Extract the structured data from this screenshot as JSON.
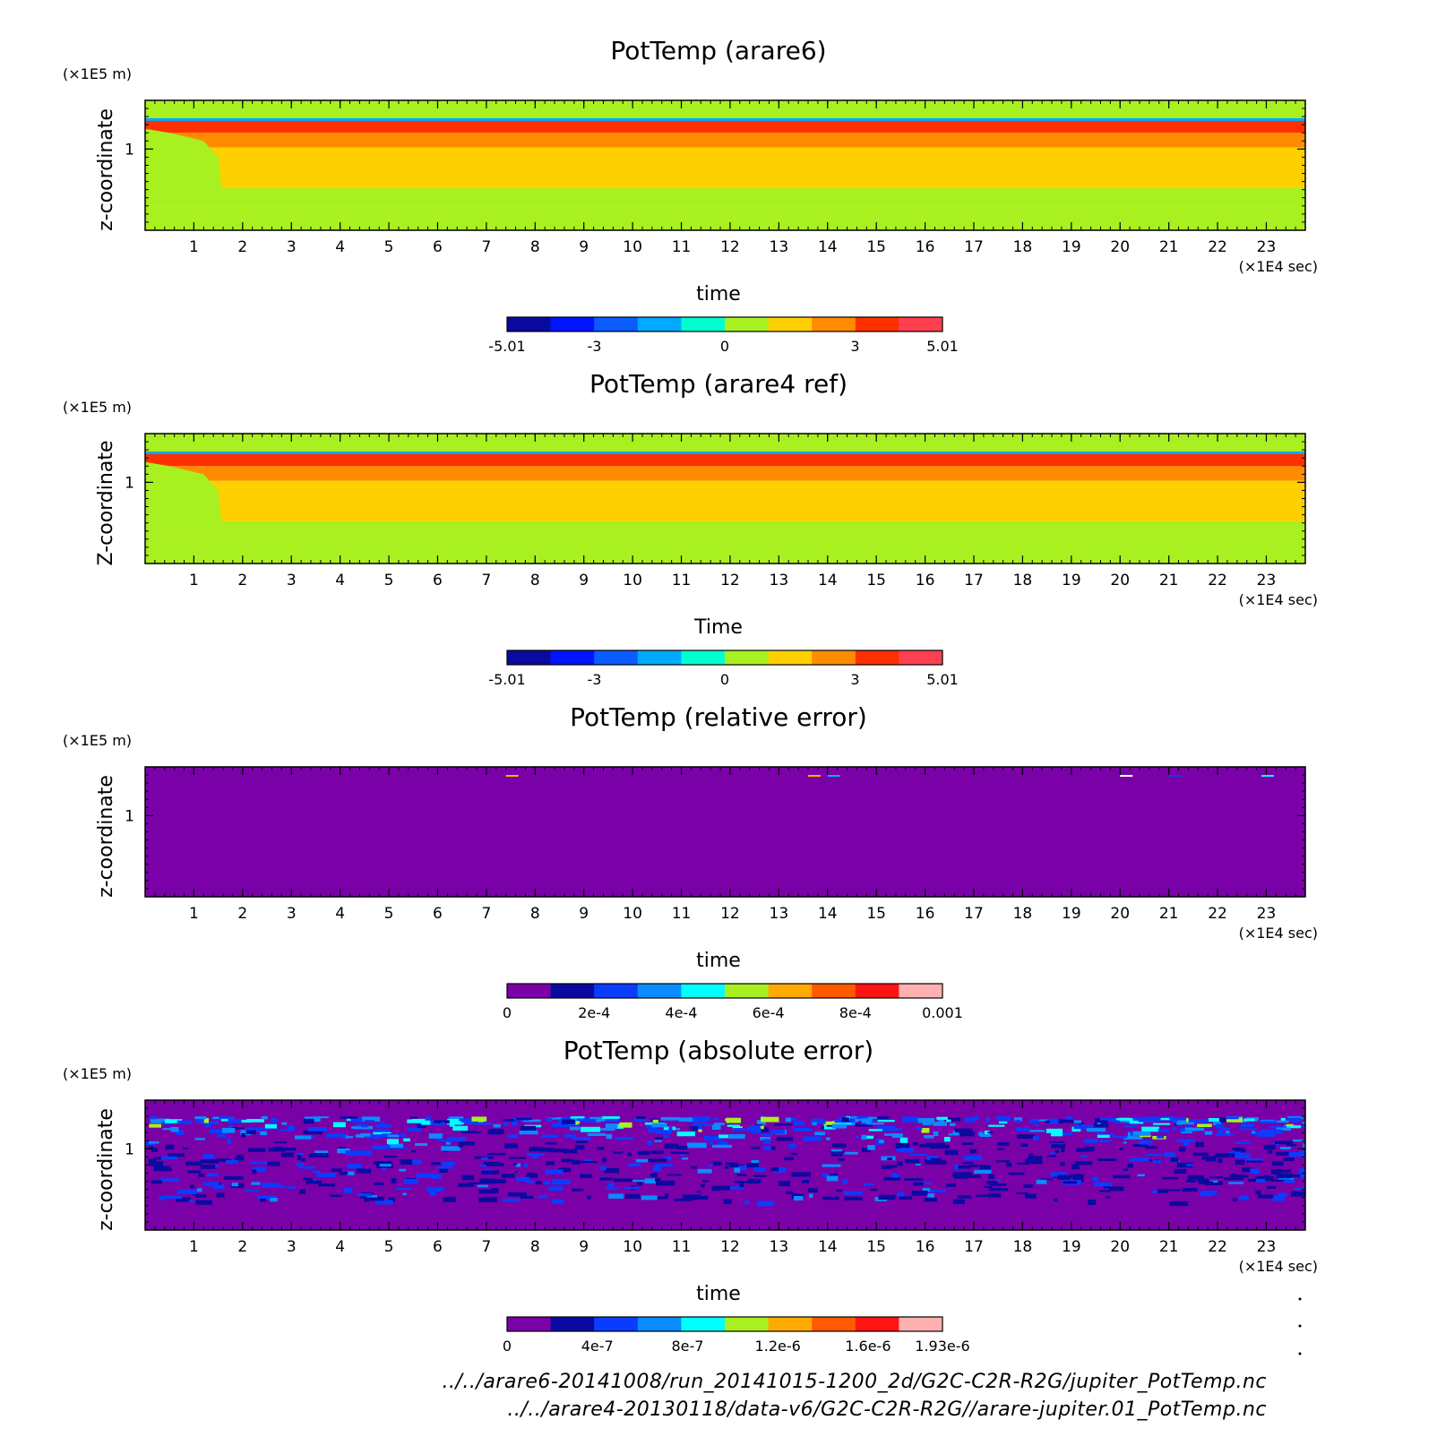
{
  "chart_data": [
    {
      "type": "heatmap",
      "title": "PotTemp (arare6)",
      "xlabel": "time",
      "ylabel": "z-coordinate",
      "x_scale_label": "(×1E4 sec)",
      "y_scale_label": "(×1E5 m)",
      "x_ticks": [
        "1",
        "2",
        "3",
        "4",
        "5",
        "6",
        "7",
        "8",
        "9",
        "10",
        "11",
        "12",
        "13",
        "14",
        "15",
        "16",
        "17",
        "18",
        "19",
        "20",
        "21",
        "22",
        "23"
      ],
      "y_ticks": [
        "1"
      ],
      "xlim": [
        0,
        23.8
      ],
      "ylim": [
        0,
        1.6
      ],
      "colorbar": {
        "labels": [
          "-5.01",
          "-3",
          "0",
          "3",
          "5.01"
        ],
        "colors": [
          "#0a0aa0",
          "#0014ff",
          "#0a5cff",
          "#00aaff",
          "#00ffd0",
          "#a8f020",
          "#ffd000",
          "#ff8c00",
          "#ff3000",
          "#ff4050"
        ]
      },
      "bands": [
        {
          "from": 0,
          "to": 0.28,
          "value": 0
        },
        {
          "from": 0.28,
          "to": 0.52,
          "value": 0.5
        },
        {
          "from": 0.52,
          "to": 1.02,
          "value": 2
        },
        {
          "from": 1.02,
          "to": 1.2,
          "value": 3
        },
        {
          "from": 1.2,
          "to": 1.36,
          "value": 4
        },
        {
          "from": 1.36,
          "to": 1.6,
          "value": 0
        }
      ]
    },
    {
      "type": "heatmap",
      "title": "PotTemp (arare4 ref)",
      "xlabel": "Time",
      "ylabel": "Z-coordinate",
      "x_scale_label": "(×1E4 sec)",
      "y_scale_label": "(×1E5 m)",
      "x_ticks": [
        "1",
        "2",
        "3",
        "4",
        "5",
        "6",
        "7",
        "8",
        "9",
        "10",
        "11",
        "12",
        "13",
        "14",
        "15",
        "16",
        "17",
        "18",
        "19",
        "20",
        "21",
        "22",
        "23"
      ],
      "y_ticks": [
        "1"
      ],
      "xlim": [
        0,
        23.8
      ],
      "ylim": [
        0,
        1.6
      ],
      "colorbar": {
        "labels": [
          "-5.01",
          "-3",
          "0",
          "3",
          "5.01"
        ],
        "colors": [
          "#0a0aa0",
          "#0014ff",
          "#0a5cff",
          "#00aaff",
          "#00ffd0",
          "#a8f020",
          "#ffd000",
          "#ff8c00",
          "#ff3000",
          "#ff4050"
        ]
      },
      "bands": [
        {
          "from": 0,
          "to": 0.28,
          "value": 0
        },
        {
          "from": 0.28,
          "to": 0.52,
          "value": 0.5
        },
        {
          "from": 0.52,
          "to": 1.02,
          "value": 2
        },
        {
          "from": 1.02,
          "to": 1.2,
          "value": 3
        },
        {
          "from": 1.2,
          "to": 1.36,
          "value": 4
        },
        {
          "from": 1.36,
          "to": 1.6,
          "value": 0
        }
      ]
    },
    {
      "type": "heatmap",
      "title": "PotTemp (relative error)",
      "xlabel": "time",
      "ylabel": "z-coordinate",
      "x_scale_label": "(×1E4 sec)",
      "y_scale_label": "(×1E5 m)",
      "x_ticks": [
        "1",
        "2",
        "3",
        "4",
        "5",
        "6",
        "7",
        "8",
        "9",
        "10",
        "11",
        "12",
        "13",
        "14",
        "15",
        "16",
        "17",
        "18",
        "19",
        "20",
        "21",
        "22",
        "23"
      ],
      "y_ticks": [
        "1"
      ],
      "xlim": [
        0,
        23.8
      ],
      "ylim": [
        0,
        1.6
      ],
      "colorbar": {
        "labels": [
          "0",
          "2e-4",
          "4e-4",
          "6e-4",
          "8e-4",
          "0.001"
        ],
        "colors": [
          "#7a00a8",
          "#0a0aa0",
          "#0a3cff",
          "#0a8cff",
          "#00ffff",
          "#a8f020",
          "#ffaa00",
          "#ff5a00",
          "#ff1414",
          "#ffb0b0"
        ]
      },
      "background_value": 0
    },
    {
      "type": "heatmap",
      "title": "PotTemp (absolute error)",
      "xlabel": "time",
      "ylabel": "z-coordinate",
      "x_scale_label": "(×1E4 sec)",
      "y_scale_label": "(×1E5 m)",
      "x_ticks": [
        "1",
        "2",
        "3",
        "4",
        "5",
        "6",
        "7",
        "8",
        "9",
        "10",
        "11",
        "12",
        "13",
        "14",
        "15",
        "16",
        "17",
        "18",
        "19",
        "20",
        "21",
        "22",
        "23"
      ],
      "y_ticks": [
        "1"
      ],
      "xlim": [
        0,
        23.8
      ],
      "ylim": [
        0,
        1.6
      ],
      "colorbar": {
        "labels": [
          "0",
          "4e-7",
          "8e-7",
          "1.2e-6",
          "1.6e-6",
          "1.93e-6"
        ],
        "colors": [
          "#7a00a8",
          "#0a0aa0",
          "#0a3cff",
          "#0a8cff",
          "#00ffff",
          "#a8f020",
          "#ffaa00",
          "#ff5a00",
          "#ff1414",
          "#ffb0b0"
        ]
      },
      "background_value": 0
    }
  ],
  "footer": {
    "line1": "../../arare6-20141008/run_20141015-1200_2d/G2C-C2R-R2G/jupiter_PotTemp.nc",
    "line2": "../../arare4-20130118/data-v6/G2C-C2R-R2G//arare-jupiter.01_PotTemp.nc"
  }
}
